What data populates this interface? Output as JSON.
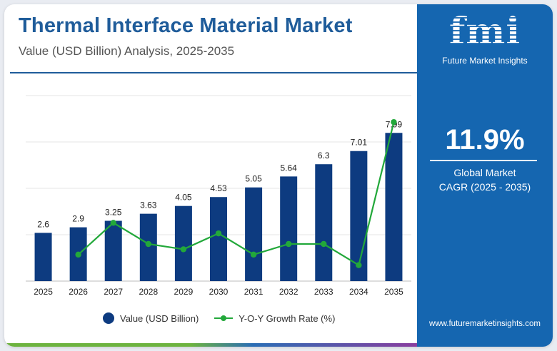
{
  "header": {
    "title": "Thermal Interface Material Market",
    "subtitle": "Value (USD Billion) Analysis, 2025-2035"
  },
  "colors": {
    "brand_blue": "#1f5c9a",
    "bar": "#0d3b80",
    "growth_line": "#22a83a",
    "side_panel": "#1566b0"
  },
  "side_panel": {
    "logo_text": "fmi",
    "logo_subtitle": "Future Market Insights",
    "cagr_value": "11.9%",
    "cagr_label_line1": "Global Market",
    "cagr_label_line2": "CAGR (2025 - 2035)",
    "website": "www.futuremarketinsights.com"
  },
  "legend": {
    "bar_label": "Value (USD Billion)",
    "line_label": "Y-O-Y Growth Rate (%)"
  },
  "chart_data": {
    "type": "bar",
    "categories": [
      "2025",
      "2026",
      "2027",
      "2028",
      "2029",
      "2030",
      "2031",
      "2032",
      "2033",
      "2034",
      "2035"
    ],
    "series": [
      {
        "name": "Value (USD Billion)",
        "type": "bar",
        "values": [
          2.6,
          2.9,
          3.25,
          3.63,
          4.05,
          4.53,
          5.05,
          5.64,
          6.3,
          7.01,
          7.99
        ],
        "data_labels": [
          "2.6",
          "2.9",
          "3.25",
          "3.63",
          "4.05",
          "4.53",
          "5.05",
          "5.64",
          "6.3",
          "7.01",
          "7.99"
        ]
      },
      {
        "name": "Y-O-Y Growth Rate (%)",
        "type": "line",
        "values": [
          null,
          11.5,
          12.1,
          11.7,
          11.6,
          11.9,
          11.5,
          11.7,
          11.7,
          11.3,
          14.0
        ]
      }
    ],
    "ylim": [
      0,
      10
    ],
    "line_ylim": [
      11.0,
      14.5
    ],
    "grid": true,
    "legend_position": "bottom"
  }
}
